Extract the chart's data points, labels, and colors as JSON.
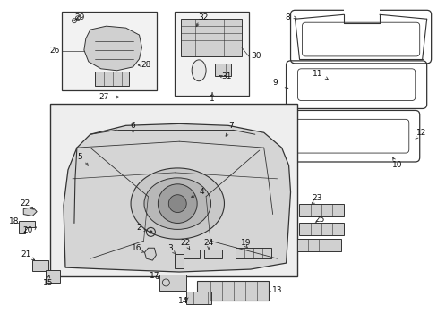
{
  "bg_color": "#ffffff",
  "fig_width": 4.89,
  "fig_height": 3.6,
  "dpi": 100,
  "line_color": "#333333",
  "fill_light": "#e8e8e8",
  "fill_mid": "#d0d0d0",
  "fill_dark": "#b0b0b0"
}
